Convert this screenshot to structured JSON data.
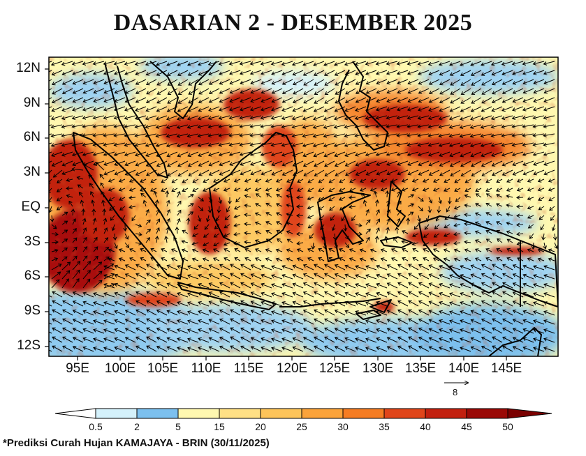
{
  "title": "DASARIAN 2 - DESEMBER 2025",
  "footnote": "*Prediksi Curah Hujan KAMAJAYA - BRIN (30/11/2025)",
  "map": {
    "lat_labels": [
      "12N",
      "9N",
      "6N",
      "3N",
      "EQ",
      "3S",
      "6S",
      "9S",
      "12S"
    ],
    "lon_labels": [
      "95E",
      "100E",
      "105E",
      "110E",
      "115E",
      "120E",
      "125E",
      "130E",
      "135E",
      "140E",
      "145E"
    ],
    "reference_vector_label": "8"
  },
  "colorbar": {
    "labels": [
      "0.5",
      "2",
      "5",
      "15",
      "20",
      "25",
      "30",
      "35",
      "40",
      "45",
      "50"
    ],
    "colors": [
      "#ffffff",
      "#d4f1fb",
      "#7cc0ee",
      "#fff8b0",
      "#ffe085",
      "#fdc45a",
      "#fba33a",
      "#f57c22",
      "#e0451a",
      "#c2200f",
      "#9a0906",
      "#7a0000"
    ]
  }
}
